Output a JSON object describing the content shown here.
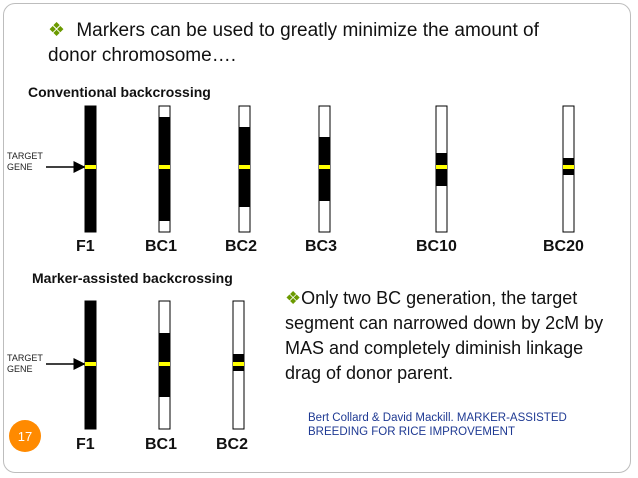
{
  "heading": {
    "bullet": "❖",
    "text": "Markers can be used to greatly minimize the amount of donor chromosome…."
  },
  "sections": {
    "conventional": "Conventional backcrossing",
    "marker_assisted": "Marker-assisted backcrossing"
  },
  "target_label": [
    "TARGET",
    "GENE"
  ],
  "conventional_generations": [
    "F1",
    "BC1",
    "BC2",
    "BC3",
    "BC10",
    "BC20"
  ],
  "mas_generations": [
    "F1",
    "BC1",
    "BC2"
  ],
  "note": {
    "bullet": "❖",
    "text": "Only two BC generation, the target segment can narrowed down by 2cM by MAS and completely diminish linkage drag of donor parent."
  },
  "credit": "Bert Collard & David Mackill. MARKER-ASSISTED BREEDING FOR RICE IMPROVEMENT",
  "page_number": "17",
  "colors": {
    "donor": "#000000",
    "recurrent": "#ffffff",
    "target": "#ffff00",
    "bullet": "#6b9a00",
    "page_badge": "#ff8a00",
    "credit": "#1f3a93"
  }
}
